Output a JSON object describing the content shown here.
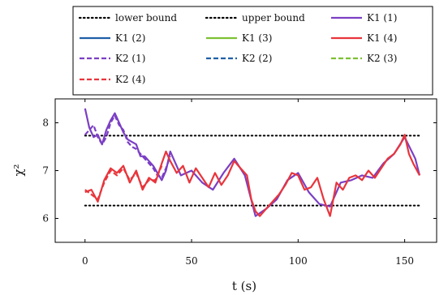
{
  "chart_data": {
    "type": "line",
    "xlabel": "t (s)",
    "ylabel": "χ²",
    "xlim": [
      -14,
      165
    ],
    "ylim": [
      5.5,
      8.5
    ],
    "xticks": [
      0,
      50,
      100,
      150
    ],
    "yticks": [
      6,
      7,
      8
    ],
    "grid": false,
    "legend_position": "top",
    "bounds": [
      {
        "name": "lower bound",
        "value": 6.27,
        "x_range": [
          0,
          157
        ]
      },
      {
        "name": "upper bound",
        "value": 7.73,
        "x_range": [
          0,
          157
        ]
      }
    ],
    "legend": [
      {
        "label": "lower bound",
        "style": "dotted",
        "color": "#000000"
      },
      {
        "label": "upper bound",
        "style": "dotted",
        "color": "#000000"
      },
      {
        "label": "K1 (1)",
        "style": "solid",
        "color": "#7b3fc4"
      },
      {
        "label": "K1 (2)",
        "style": "solid",
        "color": "#1f5fa8"
      },
      {
        "label": "K1 (3)",
        "style": "solid",
        "color": "#7cc133"
      },
      {
        "label": "K1 (4)",
        "style": "solid",
        "color": "#e8353b"
      },
      {
        "label": "K2 (1)",
        "style": "dashed",
        "color": "#7b3fc4"
      },
      {
        "label": "K2 (2)",
        "style": "dashed",
        "color": "#1f5fa8"
      },
      {
        "label": "K2 (3)",
        "style": "dashed",
        "color": "#7cc133"
      },
      {
        "label": "K2 (4)",
        "style": "dashed",
        "color": "#e8353b"
      }
    ],
    "series": [
      {
        "name": "K1 (1)",
        "color": "#7b3fc4",
        "x": [
          0,
          2,
          4,
          6,
          8,
          10,
          12,
          14,
          16,
          18,
          20,
          22,
          24,
          26,
          28,
          30,
          32,
          34,
          36,
          38,
          40,
          45,
          50,
          55,
          60,
          65,
          70,
          75,
          80,
          85,
          90,
          95,
          100,
          105,
          110,
          115,
          120,
          125,
          130,
          135,
          140,
          145,
          150,
          155,
          157
        ],
        "y": [
          8.3,
          7.9,
          7.7,
          7.75,
          7.55,
          7.85,
          8.05,
          8.2,
          8.0,
          7.8,
          7.65,
          7.6,
          7.55,
          7.3,
          7.3,
          7.2,
          7.1,
          6.95,
          6.8,
          7.0,
          7.4,
          6.9,
          7.0,
          6.75,
          6.6,
          6.95,
          7.25,
          6.9,
          6.05,
          6.2,
          6.4,
          6.8,
          6.95,
          6.55,
          6.3,
          6.25,
          6.75,
          6.8,
          6.9,
          6.85,
          7.15,
          7.35,
          7.7,
          7.25,
          6.9
        ]
      },
      {
        "name": "K2 (1)",
        "color": "#7b3fc4",
        "x": [
          0,
          2,
          4,
          6,
          8,
          10,
          12,
          14,
          16,
          18,
          20,
          22,
          24,
          26,
          28,
          30,
          32,
          34,
          36,
          38,
          40
        ],
        "y": [
          7.75,
          7.85,
          7.95,
          7.7,
          7.55,
          7.7,
          8.0,
          8.15,
          7.95,
          7.85,
          7.6,
          7.5,
          7.45,
          7.35,
          7.25,
          7.15,
          7.05,
          6.9,
          6.85,
          7.05,
          7.3
        ]
      },
      {
        "name": "K1 (4)",
        "color": "#e8353b",
        "x": [
          0,
          3,
          6,
          9,
          12,
          15,
          18,
          21,
          24,
          27,
          30,
          33,
          36,
          38,
          40,
          43,
          46,
          49,
          52,
          55,
          58,
          61,
          64,
          67,
          70,
          73,
          76,
          78,
          80,
          82,
          85,
          88,
          91,
          94,
          97,
          100,
          103,
          106,
          109,
          112,
          115,
          118,
          121,
          124,
          127,
          130,
          133,
          136,
          139,
          142,
          145,
          148,
          150,
          152,
          154,
          157
        ],
        "y": [
          6.55,
          6.6,
          6.35,
          6.8,
          7.05,
          6.95,
          7.1,
          6.75,
          7.0,
          6.6,
          6.85,
          6.75,
          7.15,
          7.4,
          7.2,
          6.95,
          7.1,
          6.75,
          7.05,
          6.85,
          6.65,
          6.95,
          6.7,
          6.9,
          7.2,
          7.05,
          6.9,
          6.4,
          6.15,
          6.05,
          6.2,
          6.35,
          6.5,
          6.7,
          6.95,
          6.9,
          6.6,
          6.65,
          6.85,
          6.4,
          6.05,
          6.75,
          6.6,
          6.85,
          6.9,
          6.8,
          7.0,
          6.85,
          7.05,
          7.25,
          7.35,
          7.55,
          7.75,
          7.35,
          7.15,
          6.9
        ]
      },
      {
        "name": "K2 (4)",
        "color": "#e8353b",
        "x": [
          0,
          3,
          6,
          9,
          12,
          15,
          18,
          21,
          24,
          27,
          30,
          33,
          36
        ],
        "y": [
          6.6,
          6.5,
          6.4,
          6.75,
          7.0,
          6.9,
          7.05,
          6.8,
          6.95,
          6.65,
          6.8,
          6.8,
          7.1
        ]
      }
    ]
  }
}
